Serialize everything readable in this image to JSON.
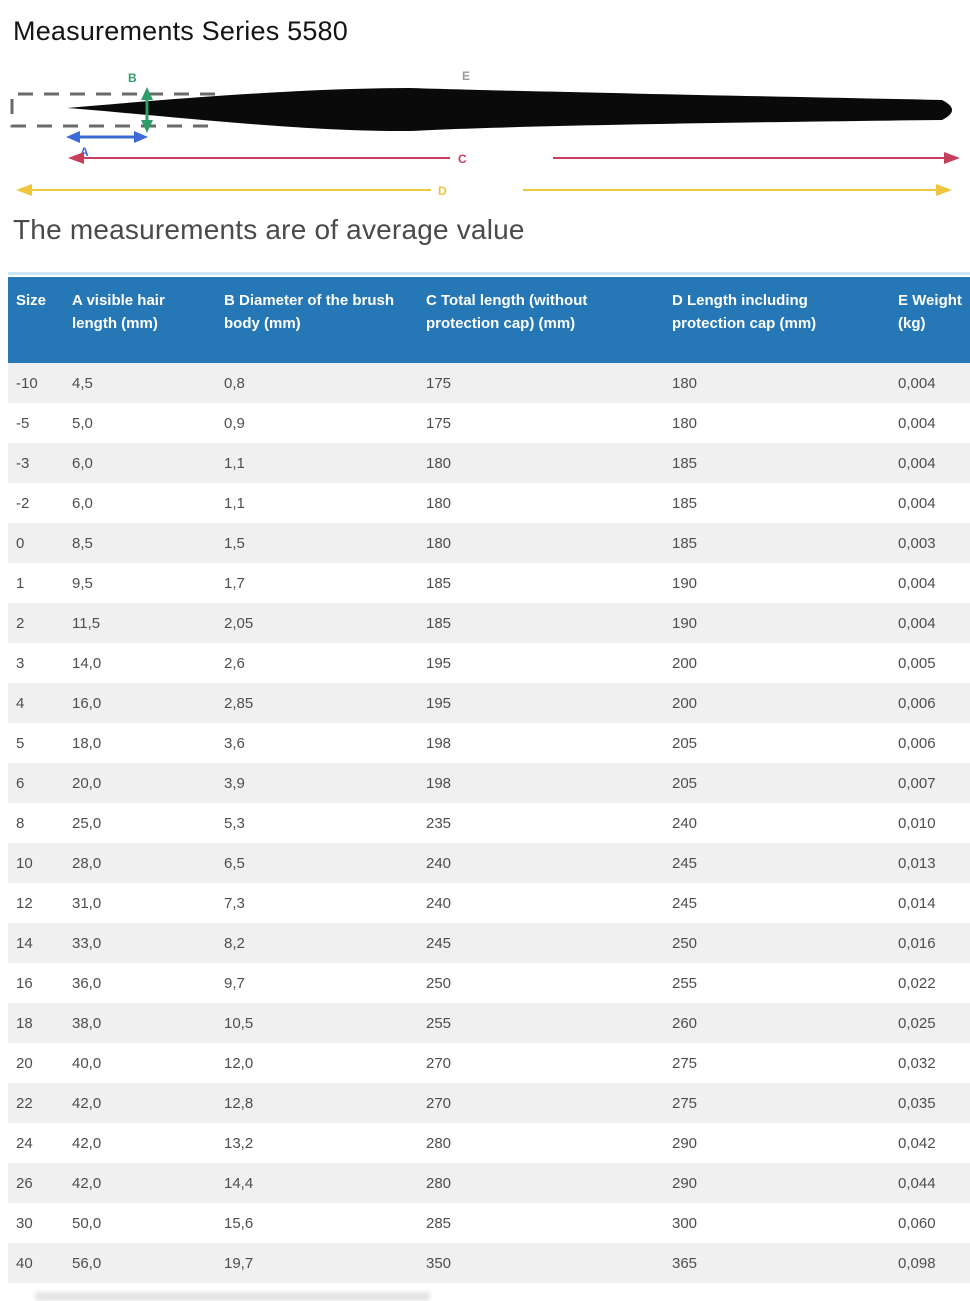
{
  "page": {
    "title": "Measurements Series 5580",
    "subtitle": "The measurements are of average value"
  },
  "diagram": {
    "labels": {
      "a": "A",
      "b": "B",
      "c": "C",
      "d": "D",
      "e": "E"
    },
    "colors": {
      "a": "#3c69d8",
      "b": "#2f9e68",
      "c": "#c83f5a",
      "d": "#edc63e",
      "e": "#9b9b9b",
      "brush": "#0a0a0a",
      "cap": "#6a6a6a"
    }
  },
  "table": {
    "style": {
      "header_bg": "#2578b5",
      "header_text": "#ffffff",
      "stripe_bg": "#f0f0f0",
      "cell_text": "#4e4e4e",
      "top_line": "#c9e7f6"
    },
    "headers": [
      "Size",
      "A visible hair length (mm)",
      "B Diameter of the brush body (mm)",
      "C Total length (without protection cap) (mm)",
      "D Length including protection cap (mm)",
      "E Weight (kg)"
    ],
    "rows": [
      [
        "-10",
        "4,5",
        "0,8",
        "175",
        "180",
        "0,004"
      ],
      [
        "-5",
        "5,0",
        "0,9",
        "175",
        "180",
        "0,004"
      ],
      [
        "-3",
        "6,0",
        "1,1",
        "180",
        "185",
        "0,004"
      ],
      [
        "-2",
        "6,0",
        "1,1",
        "180",
        "185",
        "0,004"
      ],
      [
        "0",
        "8,5",
        "1,5",
        "180",
        "185",
        "0,003"
      ],
      [
        "1",
        "9,5",
        "1,7",
        "185",
        "190",
        "0,004"
      ],
      [
        "2",
        "11,5",
        "2,05",
        "185",
        "190",
        "0,004"
      ],
      [
        "3",
        "14,0",
        "2,6",
        "195",
        "200",
        "0,005"
      ],
      [
        "4",
        "16,0",
        "2,85",
        "195",
        "200",
        "0,006"
      ],
      [
        "5",
        "18,0",
        "3,6",
        "198",
        "205",
        "0,006"
      ],
      [
        "6",
        "20,0",
        "3,9",
        "198",
        "205",
        "0,007"
      ],
      [
        "8",
        "25,0",
        "5,3",
        "235",
        "240",
        "0,010"
      ],
      [
        "10",
        "28,0",
        "6,5",
        "240",
        "245",
        "0,013"
      ],
      [
        "12",
        "31,0",
        "7,3",
        "240",
        "245",
        "0,014"
      ],
      [
        "14",
        "33,0",
        "8,2",
        "245",
        "250",
        "0,016"
      ],
      [
        "16",
        "36,0",
        "9,7",
        "250",
        "255",
        "0,022"
      ],
      [
        "18",
        "38,0",
        "10,5",
        "255",
        "260",
        "0,025"
      ],
      [
        "20",
        "40,0",
        "12,0",
        "270",
        "275",
        "0,032"
      ],
      [
        "22",
        "42,0",
        "12,8",
        "270",
        "275",
        "0,035"
      ],
      [
        "24",
        "42,0",
        "13,2",
        "280",
        "290",
        "0,042"
      ],
      [
        "26",
        "42,0",
        "14,4",
        "280",
        "290",
        "0,044"
      ],
      [
        "30",
        "50,0",
        "15,6",
        "285",
        "300",
        "0,060"
      ],
      [
        "40",
        "56,0",
        "19,7",
        "350",
        "365",
        "0,098"
      ]
    ]
  }
}
